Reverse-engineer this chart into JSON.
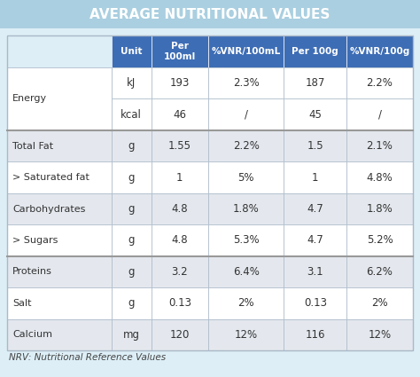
{
  "title": "AVERAGE NUTRITIONAL VALUES",
  "title_bg": "#aacfe0",
  "title_text_color": "#ffffff",
  "header_bg": "#3d6db5",
  "header_text_color": "#ffffff",
  "col_headers": [
    "Unit",
    "Per\n100ml",
    "%VNR/100mL",
    "Per 100g",
    "%VNR/100g"
  ],
  "row_groups": [
    {
      "label": "Energy",
      "rows": [
        [
          "kJ",
          "193",
          "2.3%",
          "187",
          "2.2%"
        ],
        [
          "kcal",
          "46",
          "/",
          "45",
          "/"
        ]
      ],
      "bg": "#ffffff"
    },
    {
      "label": "Total Fat",
      "rows": [
        [
          "g",
          "1.55",
          "2.2%",
          "1.5",
          "2.1%"
        ]
      ],
      "bg": "#e4e8ee"
    },
    {
      "label": "> Saturated fat",
      "rows": [
        [
          "g",
          "1",
          "5%",
          "1",
          "4.8%"
        ]
      ],
      "bg": "#ffffff"
    },
    {
      "label": "Carbohydrates",
      "rows": [
        [
          "g",
          "4.8",
          "1.8%",
          "4.7",
          "1.8%"
        ]
      ],
      "bg": "#e4e8ee"
    },
    {
      "label": "> Sugars",
      "rows": [
        [
          "g",
          "4.8",
          "5.3%",
          "4.7",
          "5.2%"
        ]
      ],
      "bg": "#ffffff"
    },
    {
      "label": "Proteins",
      "rows": [
        [
          "g",
          "3.2",
          "6.4%",
          "3.1",
          "6.2%"
        ]
      ],
      "bg": "#e4e8ee"
    },
    {
      "label": "Salt",
      "rows": [
        [
          "g",
          "0.13",
          "2%",
          "0.13",
          "2%"
        ]
      ],
      "bg": "#ffffff"
    },
    {
      "label": "Calcium",
      "rows": [
        [
          "mg",
          "120",
          "12%",
          "116",
          "12%"
        ]
      ],
      "bg": "#e4e8ee"
    }
  ],
  "footer_text": "NRV: Nutritional Reference Values",
  "outer_bg": "#ddeef6",
  "cell_text_color": "#333333",
  "border_color": "#aab8c8",
  "separator_groups": [
    0,
    5
  ],
  "thick_border_after": [
    1,
    4
  ]
}
